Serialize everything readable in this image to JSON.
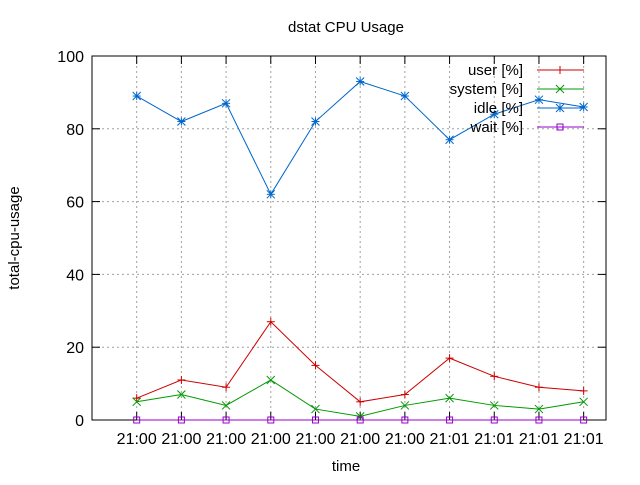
{
  "chart_data": {
    "type": "line",
    "title": "dstat CPU Usage",
    "xlabel": "time",
    "ylabel": "total-cpu-usage",
    "ylim": [
      0,
      100
    ],
    "yticks": [
      0,
      20,
      40,
      60,
      80,
      100
    ],
    "x": [
      1,
      2,
      3,
      4,
      5,
      6,
      7,
      8,
      9,
      10,
      11
    ],
    "xlim": [
      0,
      11.5
    ],
    "xtick_labels": [
      "21:00",
      "21:00",
      "21:00",
      "21:00",
      "21:00",
      "21:00",
      "21:00",
      "21:01",
      "21:01",
      "21:01",
      "21:01"
    ],
    "grid": true,
    "legend": "top-right",
    "series": [
      {
        "name": "user [%]",
        "color": "#cc0000",
        "marker": "plus",
        "values": [
          6,
          11,
          9,
          27,
          15,
          5,
          7,
          17,
          12,
          9,
          8
        ]
      },
      {
        "name": "system [%]",
        "color": "#009900",
        "marker": "cross",
        "values": [
          5,
          7,
          4,
          11,
          3,
          1,
          4,
          6,
          4,
          3,
          5
        ]
      },
      {
        "name": "idle [%]",
        "color": "#0066cc",
        "marker": "star",
        "values": [
          89,
          82,
          87,
          62,
          82,
          93,
          89,
          77,
          84,
          88,
          86
        ]
      },
      {
        "name": "wait [%]",
        "color": "#9900cc",
        "marker": "square",
        "values": [
          0,
          0,
          0,
          0,
          0,
          0,
          0,
          0,
          0,
          0,
          0
        ]
      }
    ]
  }
}
